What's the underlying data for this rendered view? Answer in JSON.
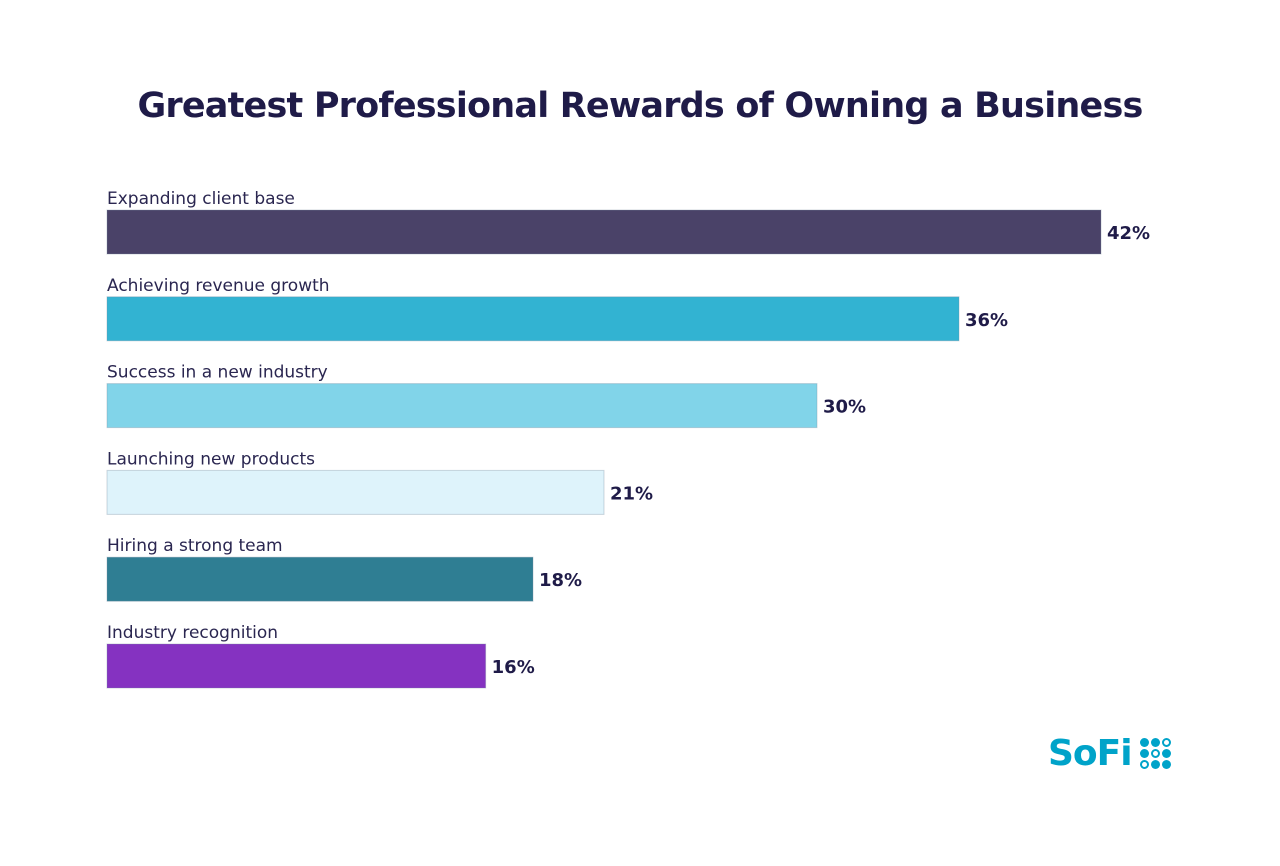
{
  "chart_data": {
    "type": "bar",
    "orientation": "horizontal",
    "title": "Greatest Professional Rewards of Owning a Business",
    "categories": [
      "Expanding client base",
      "Achieving revenue growth",
      "Success in a new industry",
      "Launching new products",
      "Hiring a strong team",
      "Industry recognition"
    ],
    "values": [
      42,
      36,
      30,
      21,
      18,
      16
    ],
    "value_labels": [
      "42%",
      "36%",
      "30%",
      "21%",
      "18%",
      "16%"
    ],
    "colors": [
      "#4a4268",
      "#32b3d2",
      "#81d4e9",
      "#def3fb",
      "#2f7e93",
      "#8532c1"
    ],
    "xlim": [
      0,
      42
    ],
    "grid": false,
    "xlabel": "",
    "ylabel": ""
  },
  "logo": {
    "text": "SoFi",
    "color": "#00a3c9"
  }
}
